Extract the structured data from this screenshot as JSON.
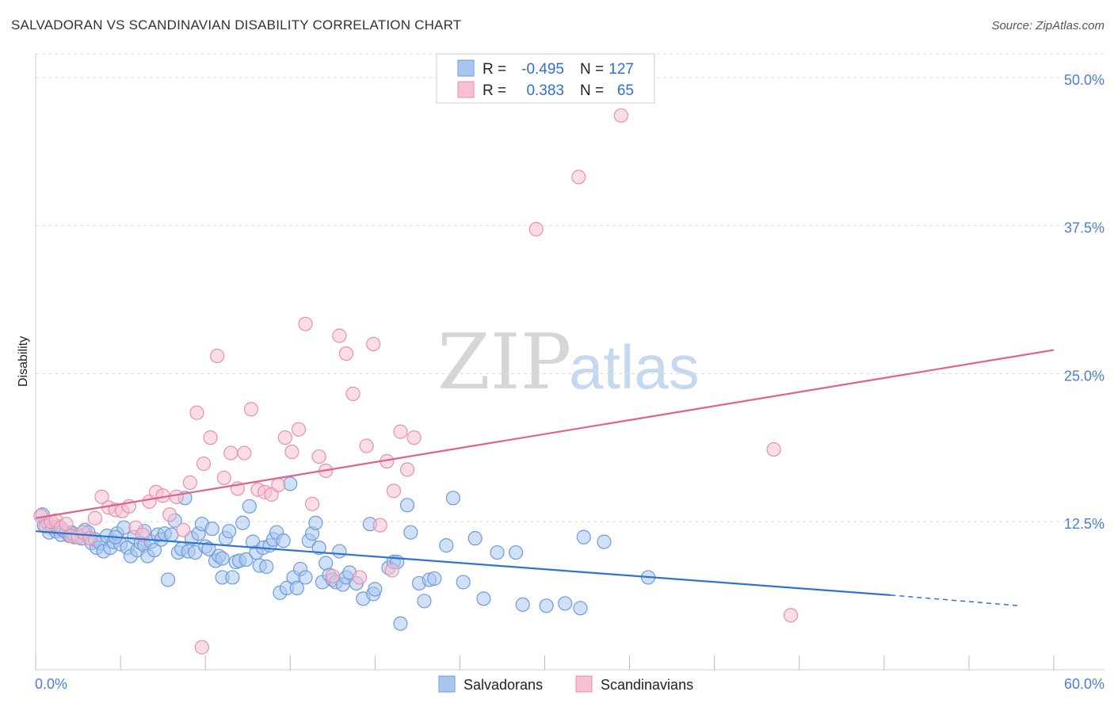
{
  "header": {
    "title": "SALVADORAN VS SCANDINAVIAN DISABILITY CORRELATION CHART",
    "source": "Source: ZipAtlas.com"
  },
  "legend": {
    "rows": [
      {
        "r_label": "R =",
        "r_value": "-0.495",
        "n_label": "N =",
        "n_value": "127"
      },
      {
        "r_label": "R =",
        "r_value": "0.383",
        "n_label": "N =",
        "n_value": "65"
      }
    ]
  },
  "bottom_legend": [
    "Salvadorans",
    "Scandinavians"
  ],
  "watermark": {
    "zip": "ZIP",
    "atlas": "atlas"
  },
  "colors": {
    "salvadoran_fill": "#a9c6ee",
    "salvadoran_stroke": "#6f9bd8",
    "salvadoran_line": "#2f74d0",
    "scandinavian_fill": "#f7c1d2",
    "scandinavian_stroke": "#e98fab",
    "scandinavian_line": "#e0628c",
    "tick_label": "#4a7fd0"
  },
  "chart_data": {
    "type": "scatter",
    "title": "SALVADORAN VS SCANDINAVIAN DISABILITY CORRELATION CHART",
    "xlabel": "",
    "ylabel": "Disability",
    "xlim": [
      0,
      60
    ],
    "ylim": [
      0,
      52
    ],
    "x_tick_labels": [
      "0.0%",
      "60.0%"
    ],
    "y_ticks": [
      12.5,
      25.0,
      37.5,
      50.0
    ],
    "y_tick_labels": [
      "12.5%",
      "25.0%",
      "37.5%",
      "50.0%"
    ],
    "grid": true,
    "legend_position": "top-center",
    "series": [
      {
        "name": "Salvadorans",
        "r": -0.495,
        "n": 127,
        "trend": {
          "x0": 0,
          "y0": 11.7,
          "x1": 50.4,
          "y1": 6.3,
          "dashed_to_x": 58.0,
          "dashed_to_y": 5.4
        },
        "points": [
          [
            0.4,
            13.1
          ],
          [
            0.5,
            12.2
          ],
          [
            0.7,
            12.4
          ],
          [
            0.8,
            11.6
          ],
          [
            1.0,
            12.0
          ],
          [
            1.2,
            11.7
          ],
          [
            1.3,
            12.1
          ],
          [
            1.5,
            11.4
          ],
          [
            1.6,
            11.8
          ],
          [
            1.8,
            11.6
          ],
          [
            2.0,
            11.3
          ],
          [
            2.1,
            11.6
          ],
          [
            2.3,
            11.2
          ],
          [
            2.5,
            11.4
          ],
          [
            2.7,
            11.1
          ],
          [
            2.9,
            11.8
          ],
          [
            3.1,
            11.6
          ],
          [
            3.3,
            10.7
          ],
          [
            3.5,
            11.0
          ],
          [
            3.6,
            10.3
          ],
          [
            3.8,
            10.7
          ],
          [
            4.0,
            10.0
          ],
          [
            4.2,
            11.3
          ],
          [
            4.4,
            10.3
          ],
          [
            4.6,
            10.8
          ],
          [
            4.8,
            11.5
          ],
          [
            5.0,
            10.6
          ],
          [
            5.2,
            12.0
          ],
          [
            5.4,
            10.3
          ],
          [
            5.6,
            9.6
          ],
          [
            5.8,
            11.2
          ],
          [
            6.0,
            10.1
          ],
          [
            6.2,
            10.7
          ],
          [
            6.4,
            10.5
          ],
          [
            6.6,
            9.6
          ],
          [
            6.8,
            10.8
          ],
          [
            7.0,
            10.1
          ],
          [
            7.2,
            11.4
          ],
          [
            7.4,
            11.0
          ],
          [
            7.6,
            11.5
          ],
          [
            7.8,
            7.6
          ],
          [
            8.0,
            11.4
          ],
          [
            8.2,
            12.6
          ],
          [
            8.4,
            9.9
          ],
          [
            8.6,
            10.2
          ],
          [
            8.8,
            14.5
          ],
          [
            9.0,
            10.0
          ],
          [
            9.2,
            11.1
          ],
          [
            9.4,
            9.9
          ],
          [
            9.6,
            11.5
          ],
          [
            9.8,
            12.3
          ],
          [
            10.0,
            10.4
          ],
          [
            10.2,
            10.2
          ],
          [
            10.4,
            11.9
          ],
          [
            10.6,
            9.2
          ],
          [
            10.8,
            9.6
          ],
          [
            11.0,
            7.8
          ],
          [
            11.2,
            11.1
          ],
          [
            11.4,
            11.7
          ],
          [
            11.6,
            7.8
          ],
          [
            11.8,
            9.1
          ],
          [
            12.0,
            9.2
          ],
          [
            12.2,
            12.4
          ],
          [
            12.4,
            9.3
          ],
          [
            12.6,
            13.8
          ],
          [
            12.8,
            10.8
          ],
          [
            13.0,
            9.9
          ],
          [
            13.2,
            8.8
          ],
          [
            13.4,
            10.3
          ],
          [
            13.6,
            8.7
          ],
          [
            13.8,
            10.5
          ],
          [
            14.0,
            11.0
          ],
          [
            14.2,
            11.6
          ],
          [
            14.4,
            6.5
          ],
          [
            14.6,
            10.9
          ],
          [
            14.8,
            6.9
          ],
          [
            15.0,
            15.7
          ],
          [
            15.2,
            7.8
          ],
          [
            15.4,
            6.9
          ],
          [
            15.6,
            8.5
          ],
          [
            15.9,
            7.8
          ],
          [
            16.1,
            10.9
          ],
          [
            16.3,
            11.5
          ],
          [
            16.5,
            12.4
          ],
          [
            16.7,
            10.3
          ],
          [
            16.9,
            7.4
          ],
          [
            17.1,
            9.0
          ],
          [
            17.3,
            8.0
          ],
          [
            17.5,
            7.6
          ],
          [
            17.7,
            7.4
          ],
          [
            17.9,
            10.0
          ],
          [
            18.1,
            7.2
          ],
          [
            18.3,
            7.8
          ],
          [
            18.5,
            8.2
          ],
          [
            18.9,
            7.3
          ],
          [
            19.3,
            6.0
          ],
          [
            19.7,
            12.3
          ],
          [
            19.9,
            6.4
          ],
          [
            20.0,
            6.8
          ],
          [
            20.8,
            8.6
          ],
          [
            21.1,
            9.1
          ],
          [
            21.3,
            9.1
          ],
          [
            21.5,
            3.9
          ],
          [
            22.1,
            11.6
          ],
          [
            21.9,
            13.9
          ],
          [
            22.6,
            7.3
          ],
          [
            22.9,
            5.8
          ],
          [
            23.2,
            7.6
          ],
          [
            23.5,
            7.7
          ],
          [
            24.2,
            10.5
          ],
          [
            25.2,
            7.4
          ],
          [
            25.9,
            11.1
          ],
          [
            26.4,
            6.0
          ],
          [
            27.2,
            9.9
          ],
          [
            28.3,
            9.9
          ],
          [
            28.7,
            5.5
          ],
          [
            30.1,
            5.4
          ],
          [
            31.2,
            5.6
          ],
          [
            32.3,
            11.2
          ],
          [
            32.1,
            5.2
          ],
          [
            33.5,
            10.8
          ],
          [
            24.6,
            14.5
          ],
          [
            36.1,
            7.8
          ],
          [
            11.0,
            9.4
          ],
          [
            4.7,
            11.2
          ],
          [
            2.2,
            11.5
          ],
          [
            6.4,
            11.7
          ]
        ]
      },
      {
        "name": "Scandinavians",
        "r": 0.383,
        "n": 65,
        "trend": {
          "x0": 0,
          "y0": 12.8,
          "x1": 60,
          "y1": 27.0
        },
        "points": [
          [
            0.3,
            13.0
          ],
          [
            0.6,
            12.1
          ],
          [
            0.9,
            12.5
          ],
          [
            1.2,
            12.6
          ],
          [
            1.5,
            12.0
          ],
          [
            1.8,
            12.3
          ],
          [
            2.1,
            11.3
          ],
          [
            2.5,
            11.2
          ],
          [
            2.8,
            11.6
          ],
          [
            3.2,
            11.1
          ],
          [
            3.5,
            12.8
          ],
          [
            3.9,
            14.6
          ],
          [
            4.3,
            13.7
          ],
          [
            4.7,
            13.5
          ],
          [
            5.1,
            13.4
          ],
          [
            5.5,
            13.8
          ],
          [
            5.9,
            12.0
          ],
          [
            6.3,
            11.4
          ],
          [
            6.7,
            14.2
          ],
          [
            7.1,
            15.0
          ],
          [
            7.5,
            14.7
          ],
          [
            7.9,
            13.1
          ],
          [
            8.3,
            14.6
          ],
          [
            8.7,
            11.8
          ],
          [
            9.1,
            15.8
          ],
          [
            9.5,
            21.7
          ],
          [
            9.9,
            17.4
          ],
          [
            10.3,
            19.6
          ],
          [
            10.7,
            26.5
          ],
          [
            11.1,
            16.2
          ],
          [
            11.5,
            18.3
          ],
          [
            11.9,
            15.3
          ],
          [
            12.3,
            18.3
          ],
          [
            12.7,
            22.0
          ],
          [
            13.1,
            15.2
          ],
          [
            13.5,
            15.0
          ],
          [
            13.9,
            14.8
          ],
          [
            14.3,
            15.6
          ],
          [
            14.7,
            19.6
          ],
          [
            15.1,
            18.4
          ],
          [
            15.5,
            20.3
          ],
          [
            15.9,
            29.2
          ],
          [
            16.3,
            14.0
          ],
          [
            16.7,
            18.0
          ],
          [
            17.1,
            16.8
          ],
          [
            17.5,
            7.9
          ],
          [
            17.9,
            28.2
          ],
          [
            18.3,
            26.7
          ],
          [
            18.7,
            23.3
          ],
          [
            19.1,
            7.8
          ],
          [
            19.5,
            18.9
          ],
          [
            19.9,
            27.5
          ],
          [
            20.3,
            12.2
          ],
          [
            20.7,
            17.6
          ],
          [
            21.1,
            15.1
          ],
          [
            21.5,
            20.1
          ],
          [
            21.9,
            16.9
          ],
          [
            22.3,
            19.6
          ],
          [
            21.0,
            8.4
          ],
          [
            9.8,
            1.9
          ],
          [
            29.5,
            37.2
          ],
          [
            32.0,
            41.6
          ],
          [
            34.5,
            46.8
          ],
          [
            43.5,
            18.6
          ],
          [
            44.5,
            4.6
          ]
        ]
      }
    ]
  }
}
